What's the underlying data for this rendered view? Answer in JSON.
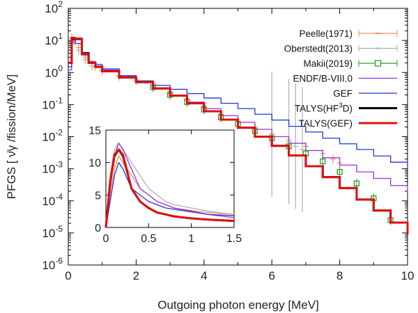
{
  "chart_data": {
    "type": "line",
    "xlabel": "Outgoing photon energy [MeV]",
    "ylabel": "PFGS [ ν̄γ /fission/MeV]",
    "xlim": [
      0,
      10
    ],
    "ylim_log": [
      -6,
      2
    ],
    "xticks": [
      "0",
      "2",
      "4",
      "6",
      "8",
      "10"
    ],
    "yticks": [
      "10-6",
      "10-5",
      "10-4",
      "10-3",
      "10-2",
      "10-1",
      "100",
      "101",
      "102"
    ],
    "series": [
      {
        "name": "Peelle(1971)",
        "color": "#f0925a",
        "style": "errorbar-points",
        "x": [
          0.15,
          0.3,
          0.5,
          0.8,
          1.0,
          1.5,
          2.0,
          2.5,
          3.0,
          3.5,
          4.0,
          4.5,
          5.0,
          5.5,
          6.0,
          6.5,
          7.0,
          7.5,
          7.8,
          8.0
        ],
        "y": [
          10,
          6,
          3,
          1.5,
          1.2,
          0.8,
          0.6,
          0.4,
          0.25,
          0.15,
          0.09,
          0.05,
          0.03,
          0.02,
          0.012,
          0.008,
          0.005,
          0.003,
          0.002,
          0.0015
        ]
      },
      {
        "name": "Oberstedt(2013)",
        "color": "#b0b0b0",
        "style": "errorbar-points",
        "x": [
          0.1,
          0.2,
          0.3,
          0.5,
          0.7,
          1.0,
          1.5,
          2.0,
          2.5,
          3.0,
          3.5,
          4.0,
          4.5,
          5.0,
          5.5,
          6.0,
          6.5,
          6.7,
          6.9
        ],
        "y": [
          12,
          9,
          5,
          2.5,
          1.6,
          1.1,
          0.75,
          0.55,
          0.35,
          0.22,
          0.14,
          0.08,
          0.05,
          0.03,
          0.02,
          0.012,
          0.007,
          0.005,
          0.004
        ]
      },
      {
        "name": "Makii(2019)",
        "color": "#2a9d2a",
        "style": "square-markers",
        "x": [
          2.5,
          3.0,
          3.5,
          4.0,
          4.5,
          5.0,
          5.5,
          6.0,
          6.5,
          7.0,
          7.5,
          8.0,
          8.5,
          9.0,
          9.5
        ],
        "y": [
          0.35,
          0.2,
          0.12,
          0.07,
          0.04,
          0.025,
          0.015,
          0.009,
          0.005,
          0.003,
          0.0017,
          0.0008,
          0.00035,
          0.00012,
          2.5e-05
        ]
      },
      {
        "name": "ENDF/B-VIII.0",
        "color": "#9b30d8",
        "style": "step",
        "x": [
          0,
          0.1,
          0.2,
          0.4,
          0.6,
          0.8,
          1.0,
          1.5,
          2.0,
          2.5,
          3.0,
          3.5,
          4.0,
          4.5,
          5.0,
          5.5,
          6.0,
          6.5,
          7.0,
          7.5,
          8.0,
          8.5,
          9.0,
          9.5,
          10.0
        ],
        "y": [
          1.2,
          9,
          12,
          4,
          2.2,
          1.6,
          1.2,
          0.75,
          0.5,
          0.32,
          0.2,
          0.12,
          0.075,
          0.045,
          0.028,
          0.017,
          0.01,
          0.0062,
          0.0037,
          0.0022,
          0.0013,
          0.0008,
          0.0005,
          0.0003,
          0.00018
        ]
      },
      {
        "name": "GEF",
        "color": "#2233dd",
        "style": "step",
        "x": [
          0,
          0.1,
          0.2,
          0.4,
          0.6,
          0.8,
          1.0,
          1.5,
          2.0,
          2.5,
          3.0,
          3.5,
          4.0,
          4.5,
          5.0,
          5.5,
          6.0,
          6.5,
          7.0,
          7.5,
          8.0,
          8.5,
          9.0,
          9.5,
          10.0
        ],
        "y": [
          1.5,
          11,
          8,
          3.5,
          2.0,
          1.8,
          1.3,
          0.8,
          0.55,
          0.4,
          0.3,
          0.22,
          0.16,
          0.11,
          0.075,
          0.05,
          0.033,
          0.021,
          0.014,
          0.009,
          0.006,
          0.004,
          0.0025,
          0.0016,
          0.0011
        ]
      },
      {
        "name": "TALYS(HF3D)",
        "color": "#000000",
        "style": "step-thick",
        "x": [
          0,
          0.1,
          0.2,
          0.4,
          0.6,
          0.8,
          1.0,
          1.5,
          2.0,
          2.5,
          3.0,
          3.5,
          4.0,
          4.5,
          5.0,
          5.5,
          6.0,
          6.5,
          7.0,
          7.5,
          8.0,
          8.5,
          9.0,
          9.5,
          10.0
        ],
        "y": [
          2,
          11,
          11,
          4,
          2.0,
          1.5,
          1.1,
          0.7,
          0.5,
          0.32,
          0.19,
          0.11,
          0.062,
          0.034,
          0.019,
          0.01,
          0.0052,
          0.0026,
          0.0012,
          0.00055,
          0.00025,
          0.00011,
          5e-05,
          2.1e-05,
          9e-06
        ]
      },
      {
        "name": "TALYS(GEF)",
        "color": "#e01010",
        "style": "step-thick",
        "x": [
          0,
          0.1,
          0.2,
          0.4,
          0.6,
          0.8,
          1.0,
          1.5,
          2.0,
          2.5,
          3.0,
          3.5,
          4.0,
          4.5,
          5.0,
          5.5,
          6.0,
          6.5,
          7.0,
          7.5,
          8.0,
          8.5,
          9.0,
          9.5,
          10.0
        ],
        "y": [
          2,
          12,
          11,
          3.8,
          2.0,
          1.5,
          1.1,
          0.7,
          0.5,
          0.32,
          0.19,
          0.11,
          0.062,
          0.034,
          0.019,
          0.01,
          0.0052,
          0.0026,
          0.0012,
          0.00055,
          0.00025,
          0.00011,
          5e-05,
          2.1e-05,
          9e-06
        ]
      }
    ],
    "inset": {
      "type": "line",
      "xlim": [
        0,
        1.5
      ],
      "ylim": [
        0,
        15
      ],
      "xticks": [
        "0",
        "0.5",
        "1",
        "1.5"
      ],
      "yticks": [
        "0",
        "5",
        "10",
        "15"
      ],
      "x": [
        0,
        0.05,
        0.1,
        0.15,
        0.2,
        0.3,
        0.4,
        0.5,
        0.6,
        0.7,
        0.8,
        1.0,
        1.2,
        1.5
      ],
      "series": [
        {
          "name": "TALYS(HF3D)",
          "color": "#000000",
          "y": [
            0,
            7,
            11,
            12,
            11,
            6,
            4,
            3,
            2.3,
            2.0,
            1.7,
            1.4,
            1.2,
            1.0
          ]
        },
        {
          "name": "TALYS(GEF)",
          "color": "#e01010",
          "y": [
            0,
            7,
            11.2,
            12,
            11.2,
            6,
            4,
            3,
            2.3,
            2.0,
            1.7,
            1.4,
            1.2,
            1.0
          ]
        },
        {
          "name": "GEF",
          "color": "#2233dd",
          "y": [
            0,
            4,
            8,
            10,
            9,
            6,
            5,
            4,
            3.5,
            3.0,
            2.8,
            2.4,
            2.0,
            1.8
          ]
        },
        {
          "name": "ENDF/B-VIII.0",
          "color": "#9b30d8",
          "y": [
            0,
            6,
            11,
            13,
            12,
            9,
            6,
            5,
            4,
            3.5,
            3,
            2.5,
            2,
            1.5
          ]
        },
        {
          "name": "Oberstedt(2013)",
          "color": "#b0b0b0",
          "y": [
            0,
            8,
            12,
            13,
            12,
            10,
            8,
            6,
            5,
            4,
            3.5,
            3,
            2.5,
            2
          ]
        },
        {
          "name": "Peelle(1971)",
          "color": "#f0925a",
          "y": [
            0,
            5,
            9,
            11,
            10,
            8,
            6,
            5,
            4,
            3.5,
            3,
            2.6,
            2.3,
            2.0
          ]
        }
      ]
    }
  }
}
